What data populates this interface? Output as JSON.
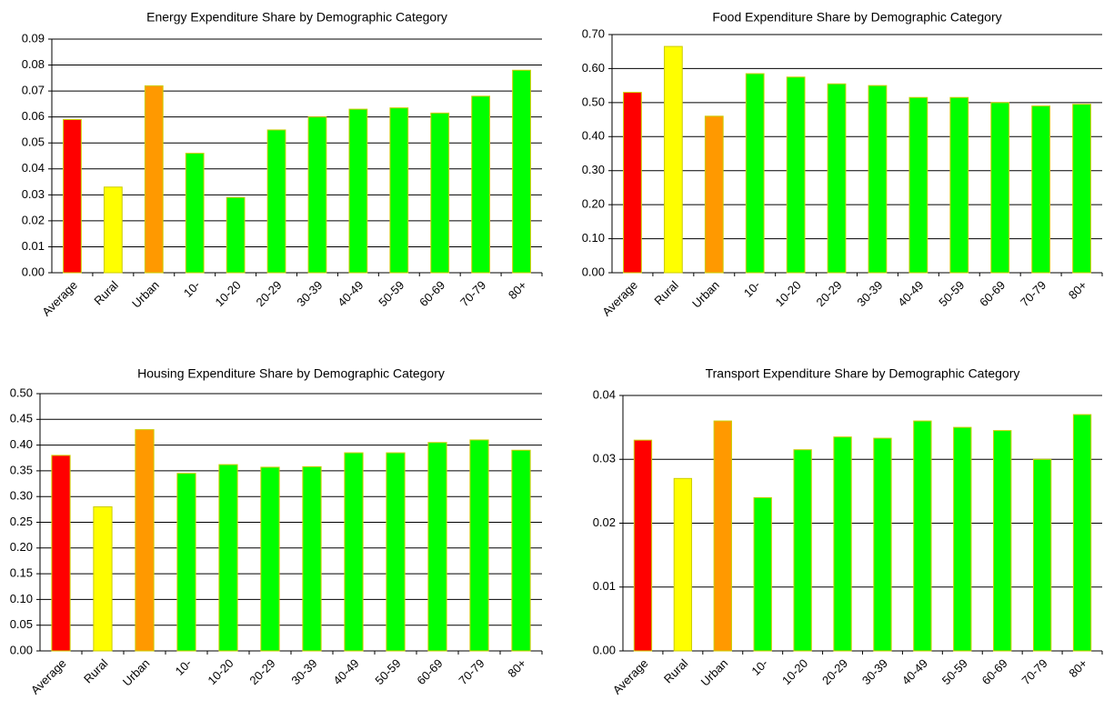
{
  "chart_data": [
    {
      "type": "bar",
      "title": "Energy Expenditure Share by Demographic Category",
      "categories": [
        "Average",
        "Rural",
        "Urban",
        "10-",
        "10-20",
        "20-29",
        "30-39",
        "40-49",
        "50-59",
        "60-69",
        "70-79",
        "80+"
      ],
      "values": [
        0.059,
        0.033,
        0.072,
        0.046,
        0.029,
        0.055,
        0.06,
        0.063,
        0.0635,
        0.0615,
        0.068,
        0.078
      ],
      "colors": [
        "#ff0000",
        "#ffff00",
        "#ff9900",
        "#00ff00",
        "#00ff00",
        "#00ff00",
        "#00ff00",
        "#00ff00",
        "#00ff00",
        "#00ff00",
        "#00ff00",
        "#00ff00"
      ],
      "ylim": [
        0,
        0.09
      ],
      "yticks": [
        {
          "value": 0,
          "label": "0.00"
        },
        {
          "value": 0.01,
          "label": "0.01"
        },
        {
          "value": 0.02,
          "label": "0.02"
        },
        {
          "value": 0.03,
          "label": "0.03"
        },
        {
          "value": 0.04,
          "label": "0.04"
        },
        {
          "value": 0.05,
          "label": "0.05"
        },
        {
          "value": 0.06,
          "label": "0.06"
        },
        {
          "value": 0.07,
          "label": "0.07"
        },
        {
          "value": 0.08,
          "label": "0.08"
        },
        {
          "value": 0.09,
          "label": "0.09"
        }
      ],
      "grid": true
    },
    {
      "type": "bar",
      "title": "Food Expenditure Share by Demographic Category",
      "categories": [
        "Average",
        "Rural",
        "Urban",
        "10-",
        "10-20",
        "20-29",
        "30-39",
        "40-49",
        "50-59",
        "60-69",
        "70-79",
        "80+"
      ],
      "values": [
        0.53,
        0.665,
        0.46,
        0.585,
        0.575,
        0.555,
        0.55,
        0.515,
        0.515,
        0.5,
        0.49,
        0.495
      ],
      "colors": [
        "#ff0000",
        "#ffff00",
        "#ff9900",
        "#00ff00",
        "#00ff00",
        "#00ff00",
        "#00ff00",
        "#00ff00",
        "#00ff00",
        "#00ff00",
        "#00ff00",
        "#00ff00"
      ],
      "ylim": [
        0,
        0.7
      ],
      "yticks": [
        {
          "value": 0,
          "label": "0.00"
        },
        {
          "value": 0.1,
          "label": "0.10"
        },
        {
          "value": 0.2,
          "label": "0.20"
        },
        {
          "value": 0.3,
          "label": "0.30"
        },
        {
          "value": 0.4,
          "label": "0.40"
        },
        {
          "value": 0.5,
          "label": "0.50"
        },
        {
          "value": 0.6,
          "label": "0.60"
        },
        {
          "value": 0.7,
          "label": "0.70"
        }
      ],
      "grid": true
    },
    {
      "type": "bar",
      "title": "Housing Expenditure Share by Demographic Category",
      "categories": [
        "Average",
        "Rural",
        "Urban",
        "10-",
        "10-20",
        "20-29",
        "30-39",
        "40-49",
        "50-59",
        "60-69",
        "70-79",
        "80+"
      ],
      "values": [
        0.38,
        0.28,
        0.43,
        0.345,
        0.362,
        0.357,
        0.358,
        0.385,
        0.385,
        0.405,
        0.41,
        0.39
      ],
      "colors": [
        "#ff0000",
        "#ffff00",
        "#ff9900",
        "#00ff00",
        "#00ff00",
        "#00ff00",
        "#00ff00",
        "#00ff00",
        "#00ff00",
        "#00ff00",
        "#00ff00",
        "#00ff00"
      ],
      "ylim": [
        0,
        0.5
      ],
      "yticks": [
        {
          "value": 0,
          "label": "0.00"
        },
        {
          "value": 0.05,
          "label": "0.05"
        },
        {
          "value": 0.1,
          "label": "0.10"
        },
        {
          "value": 0.15,
          "label": "0.15"
        },
        {
          "value": 0.2,
          "label": "0.20"
        },
        {
          "value": 0.25,
          "label": "0.25"
        },
        {
          "value": 0.3,
          "label": "0.30"
        },
        {
          "value": 0.35,
          "label": "0.35"
        },
        {
          "value": 0.4,
          "label": "0.40"
        },
        {
          "value": 0.45,
          "label": "0.45"
        },
        {
          "value": 0.5,
          "label": "0.50"
        }
      ],
      "grid": true
    },
    {
      "type": "bar",
      "title": "Transport Expenditure Share by Demographic Category",
      "categories": [
        "Average",
        "Rural",
        "Urban",
        "10-",
        "10-20",
        "20-29",
        "30-39",
        "40-49",
        "50-59",
        "60-69",
        "70-79",
        "80+"
      ],
      "values": [
        0.033,
        0.027,
        0.036,
        0.024,
        0.0315,
        0.0335,
        0.0333,
        0.036,
        0.035,
        0.0345,
        0.03,
        0.037
      ],
      "colors": [
        "#ff0000",
        "#ffff00",
        "#ff9900",
        "#00ff00",
        "#00ff00",
        "#00ff00",
        "#00ff00",
        "#00ff00",
        "#00ff00",
        "#00ff00",
        "#00ff00",
        "#00ff00"
      ],
      "ylim": [
        0,
        0.04
      ],
      "yticks": [
        {
          "value": 0,
          "label": "0.00"
        },
        {
          "value": 0.01,
          "label": "0.01"
        },
        {
          "value": 0.02,
          "label": "0.02"
        },
        {
          "value": 0.03,
          "label": "0.03"
        },
        {
          "value": 0.04,
          "label": "0.04"
        }
      ],
      "grid": true
    }
  ]
}
